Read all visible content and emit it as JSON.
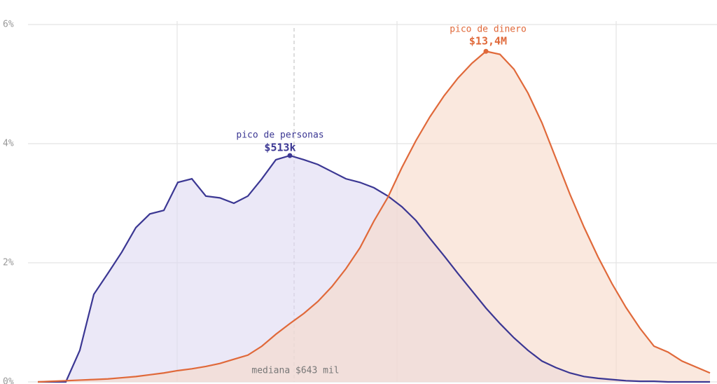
{
  "chart_data": {
    "type": "area",
    "ylim": [
      0,
      6
    ],
    "yticks": [
      {
        "value": 0,
        "label": "0%"
      },
      {
        "value": 2,
        "label": "2%"
      },
      {
        "value": 4,
        "label": "4%"
      },
      {
        "value": 6,
        "label": "6%"
      }
    ],
    "grid": true,
    "series": [
      {
        "color": "#3b3793",
        "fill": "#ddd9f2",
        "values": [
          0,
          0,
          0,
          0.53,
          1.47,
          1.82,
          2.18,
          2.59,
          2.82,
          2.88,
          3.35,
          3.41,
          3.12,
          3.09,
          3.0,
          3.12,
          3.41,
          3.73,
          3.8,
          3.73,
          3.65,
          3.53,
          3.41,
          3.35,
          3.26,
          3.12,
          2.94,
          2.71,
          2.41,
          2.12,
          1.82,
          1.53,
          1.24,
          0.98,
          0.74,
          0.53,
          0.35,
          0.24,
          0.15,
          0.09,
          0.06,
          0.04,
          0.02,
          0.01,
          0.01,
          0,
          0,
          0,
          0
        ]
      },
      {
        "color": "#e0693a",
        "fill": "#f7d8c8",
        "values": [
          0,
          0.01,
          0.02,
          0.03,
          0.04,
          0.05,
          0.07,
          0.09,
          0.12,
          0.15,
          0.19,
          0.22,
          0.26,
          0.31,
          0.38,
          0.45,
          0.6,
          0.8,
          0.98,
          1.15,
          1.35,
          1.6,
          1.9,
          2.25,
          2.7,
          3.1,
          3.6,
          4.05,
          4.45,
          4.8,
          5.1,
          5.35,
          5.55,
          5.5,
          5.25,
          4.85,
          4.35,
          3.75,
          3.15,
          2.6,
          2.1,
          1.65,
          1.25,
          0.9,
          0.6,
          0.5,
          0.35,
          0.25,
          0.15
        ]
      }
    ],
    "annotations": [
      {
        "title": "pico de personas",
        "value": "$513k"
      },
      {
        "title": "pico de dinero",
        "value": "$13,4M"
      },
      {
        "text": "mediana $643 mil"
      }
    ]
  }
}
